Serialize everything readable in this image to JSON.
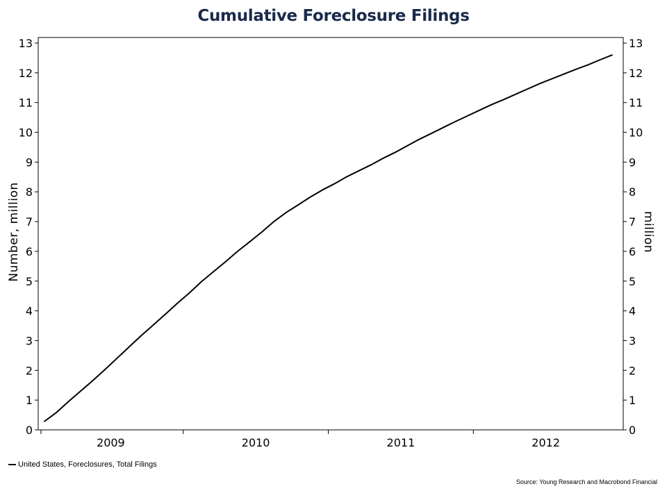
{
  "chart_data": {
    "type": "line",
    "title": "Cumulative Foreclosure Filings",
    "ylabel": "Number, million",
    "ylabel_right": "million",
    "ylim": [
      0,
      13
    ],
    "y_ticks": [
      0,
      1,
      2,
      3,
      4,
      5,
      6,
      7,
      8,
      9,
      10,
      11,
      12,
      13
    ],
    "x_range": [
      "2009-01",
      "2012-12"
    ],
    "x_tick_labels": [
      "2009",
      "2010",
      "2011",
      "2012"
    ],
    "grid": false,
    "legend_position": "bottom-left",
    "series": [
      {
        "name": "United States, Foreclosures, Total Filings",
        "color": "#000000",
        "x": [
          "2009-01",
          "2009-02",
          "2009-03",
          "2009-04",
          "2009-05",
          "2009-06",
          "2009-07",
          "2009-08",
          "2009-09",
          "2009-10",
          "2009-11",
          "2009-12",
          "2010-01",
          "2010-02",
          "2010-03",
          "2010-04",
          "2010-05",
          "2010-06",
          "2010-07",
          "2010-08",
          "2010-09",
          "2010-10",
          "2010-11",
          "2010-12",
          "2011-01",
          "2011-02",
          "2011-03",
          "2011-04",
          "2011-05",
          "2011-06",
          "2011-07",
          "2011-08",
          "2011-09",
          "2011-10",
          "2011-11",
          "2011-12",
          "2012-01",
          "2012-02",
          "2012-03",
          "2012-04",
          "2012-05",
          "2012-06",
          "2012-07",
          "2012-08",
          "2012-09",
          "2012-10",
          "2012-11",
          "2012-12"
        ],
        "values": [
          0.28,
          0.58,
          0.95,
          1.3,
          1.65,
          2.02,
          2.4,
          2.78,
          3.16,
          3.52,
          3.88,
          4.25,
          4.6,
          4.98,
          5.32,
          5.65,
          6.0,
          6.32,
          6.65,
          7.0,
          7.3,
          7.56,
          7.82,
          8.06,
          8.27,
          8.5,
          8.7,
          8.9,
          9.12,
          9.32,
          9.54,
          9.76,
          9.96,
          10.16,
          10.36,
          10.55,
          10.74,
          10.93,
          11.1,
          11.28,
          11.46,
          11.64,
          11.8,
          11.96,
          12.12,
          12.27,
          12.44,
          12.6
        ]
      }
    ]
  },
  "legend": {
    "label": "United States, Foreclosures, Total Filings"
  },
  "source": {
    "text": "Source: Young Research and Macrobond Financial"
  }
}
